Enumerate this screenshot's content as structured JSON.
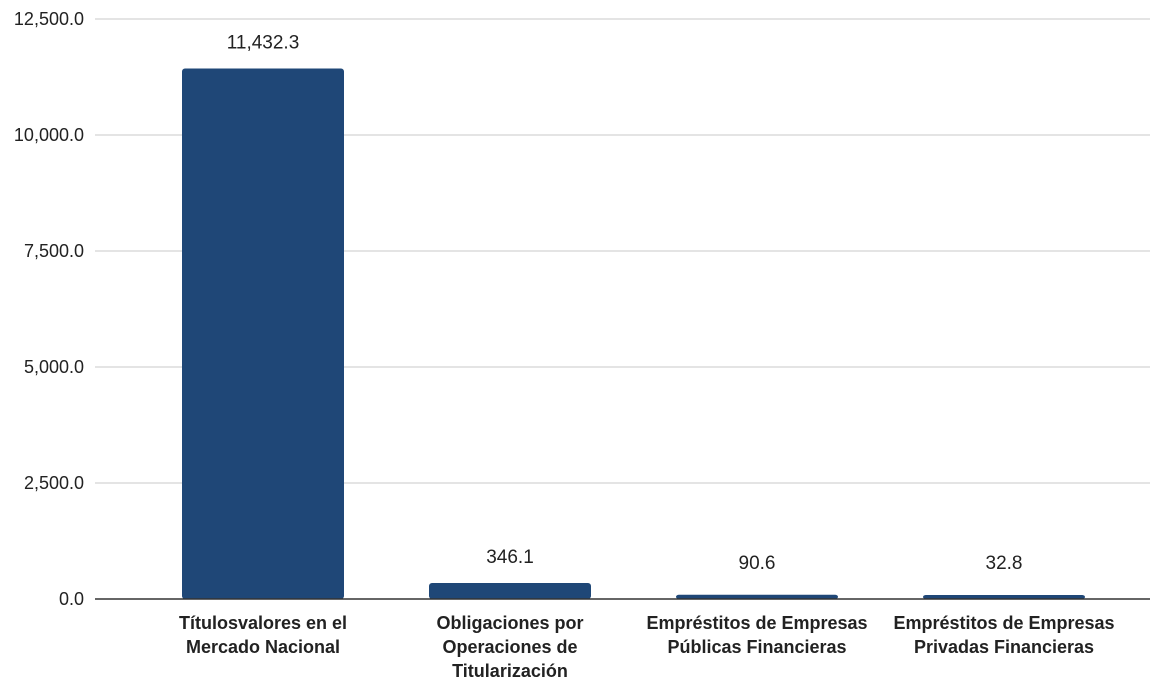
{
  "chart_data": {
    "type": "bar",
    "title": "",
    "xlabel": "",
    "ylabel": "",
    "categories": [
      [
        "Títulosvalores en el",
        "Mercado Nacional"
      ],
      [
        "Obligaciones por",
        "Operaciones de",
        "Titularización"
      ],
      [
        "Empréstitos de Empresas",
        "Públicas Financieras"
      ],
      [
        "Empréstitos de Empresas",
        "Privadas Financieras"
      ]
    ],
    "values": [
      11432.3,
      346.1,
      90.6,
      32.8
    ],
    "data_labels": [
      "11,432.3",
      "346.1",
      "90.6",
      "32.8"
    ],
    "ylim": [
      0,
      12500
    ],
    "yticks": [
      0,
      2500,
      5000,
      7500,
      10000,
      12500
    ],
    "ytick_labels": [
      "0.0",
      "2,500.0",
      "5,000.0",
      "7,500.0",
      "10,000.0",
      "12,500.0"
    ],
    "grid": true,
    "legend": "none",
    "colors": {
      "bar": "#1f4777",
      "grid": "#c8c8c8",
      "baseline": "#333333",
      "text": "#222222"
    }
  }
}
